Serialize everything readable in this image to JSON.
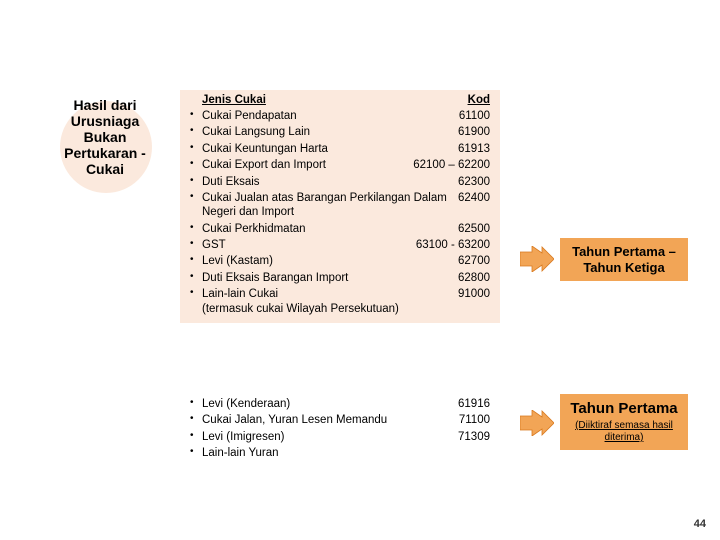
{
  "leftTitle": "Hasil dari Urusniaga Bukan Pertukaran - Cukai",
  "headers": {
    "name": "Jenis Cukai",
    "code": "Kod"
  },
  "mainItems": [
    {
      "label": "Cukai Pendapatan",
      "code": "61100"
    },
    {
      "label": "Cukai Langsung Lain",
      "code": "61900"
    },
    {
      "label": "Cukai Keuntungan Harta",
      "code": "61913"
    },
    {
      "label": "Cukai Export dan Import",
      "code": "62100 – 62200"
    },
    {
      "label": "Duti Eksais",
      "code": "62300"
    },
    {
      "label": "Cukai Jualan atas Barangan Perkilangan Dalam Negeri dan Import",
      "code": "62400"
    },
    {
      "label": "Cukai Perkhidmatan",
      "code": "62500"
    },
    {
      "label": "GST",
      "code": "63100 - 63200"
    },
    {
      "label": "Levi (Kastam)",
      "code": "62700"
    },
    {
      "label": "Duti Eksais Barangan Import",
      "code": "62800"
    },
    {
      "label": "Lain-lain Cukai\n(termasuk cukai Wilayah  Persekutuan)",
      "code": "91000"
    }
  ],
  "secondItems": [
    {
      "label": "Levi (Kenderaan)",
      "code": "61916"
    },
    {
      "label": "Cukai Jalan, Yuran Lesen Memandu",
      "code": "71100"
    },
    {
      "label": "Levi (Imigresen)",
      "code": "71309"
    },
    {
      "label": "Lain-lain Yuran",
      "code": ""
    }
  ],
  "callouts": {
    "first": "Tahun Pertama – Tahun Ketiga",
    "second": "Tahun Pertama",
    "secondSub": "(Diiktiraf semasa hasil diterima)"
  },
  "colors": {
    "peach": "#fbe9dd",
    "orange": "#f2a556",
    "arrowStroke": "#d97a1f"
  },
  "pageNumber": "44"
}
